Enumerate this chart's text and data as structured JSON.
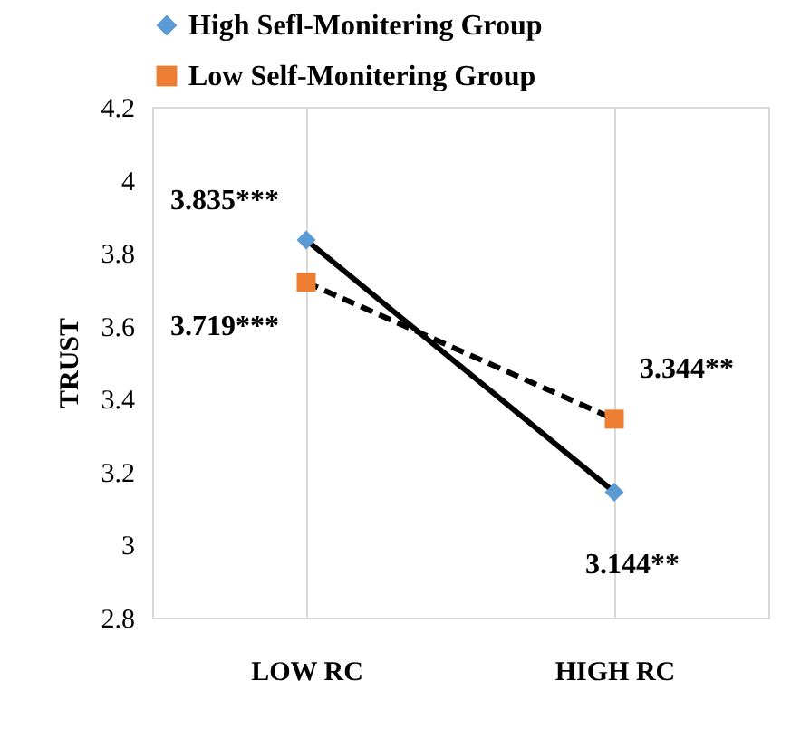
{
  "chart_data": {
    "type": "line",
    "ylabel": "TRUST",
    "categories": [
      "LOW RC",
      "HIGH RC"
    ],
    "series": [
      {
        "name": "High Sefl-Monitering Group",
        "color": "#5b9bd5",
        "values": [
          3.835,
          3.144
        ],
        "value_labels": [
          "3.835***",
          "3.144**"
        ],
        "marker": "diamond",
        "line_style": "solid"
      },
      {
        "name": "Low Self-Monitering Group",
        "color": "#ed7d31",
        "values": [
          3.719,
          3.344
        ],
        "value_labels": [
          "3.719***",
          "3.344**"
        ],
        "marker": "square",
        "line_style": "dashed"
      }
    ],
    "ylim": [
      2.8,
      4.2
    ],
    "yticks": [
      2.8,
      3,
      3.2,
      3.4,
      3.6,
      3.8,
      4,
      4.2
    ],
    "grid": "x",
    "legend": "top"
  }
}
